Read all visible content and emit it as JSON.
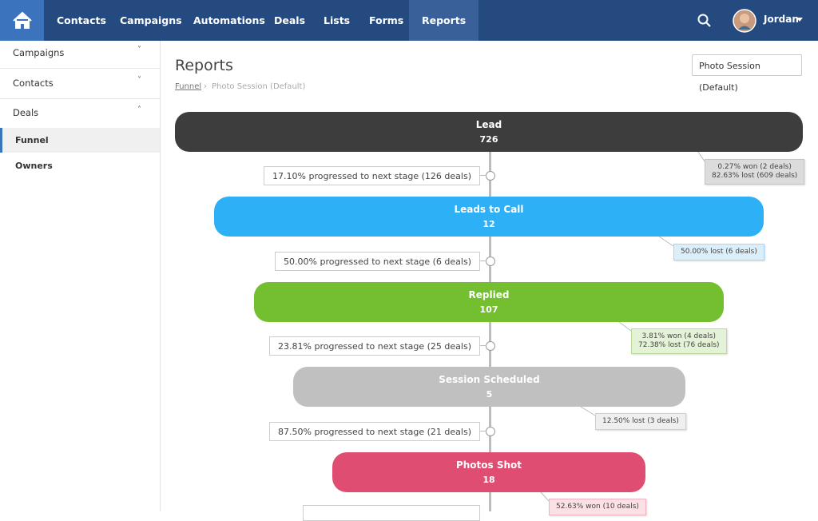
{
  "nav": {
    "items": [
      "Contacts",
      "Campaigns",
      "Automations",
      "Deals",
      "Lists",
      "Forms",
      "Reports"
    ],
    "active": 6
  },
  "user": {
    "name": "Jordan"
  },
  "sidebar": {
    "sections": [
      "Campaigns",
      "Contacts",
      "Deals"
    ],
    "sub_items": [
      "Funnel",
      "Owners"
    ]
  },
  "header": {
    "title": "Reports",
    "dropdown": "Photo Session (Default)"
  },
  "breadcrumb": {
    "link": "Funnel",
    "current": "Photo Session (Default)"
  },
  "stages": [
    {
      "name": "Lead",
      "count": 726,
      "color": "#3d3d3d"
    },
    {
      "name": "Leads to Call",
      "count": 12,
      "color": "#2db0f6"
    },
    {
      "name": "Replied",
      "count": 107,
      "color": "#73bf2f"
    },
    {
      "name": "Session Scheduled",
      "count": 5,
      "color": "#c0c0c0"
    },
    {
      "name": "Photos Shot",
      "count": 18,
      "color": "#e04d72"
    }
  ],
  "progress": [
    "17.10% progressed to next stage (126 deals)",
    "50.00% progressed to next stage (6 deals)",
    "23.81% progressed to next stage (25 deals)",
    "87.50% progressed to next stage (21 deals)"
  ],
  "notes": [
    {
      "lines": [
        "0.27% won (2 deals)",
        "82.63% lost (609 deals)"
      ],
      "bg": "#dcdcdc",
      "border": "#c4c4c4"
    },
    {
      "lines": [
        "50.00% lost (6 deals)"
      ],
      "bg": "#dbeffb",
      "border": "#a9d6f2"
    },
    {
      "lines": [
        "3.81% won (4 deals)",
        "72.38% lost (76 deals)"
      ],
      "bg": "#e4f2d8",
      "border": "#b9d99d"
    },
    {
      "lines": [
        "12.50% lost (3 deals)"
      ],
      "bg": "#efefef",
      "border": "#cfcfcf"
    },
    {
      "lines": [
        "52.63% won (10 deals)"
      ],
      "bg": "#fbe0e6",
      "border": "#efb3c1"
    }
  ]
}
